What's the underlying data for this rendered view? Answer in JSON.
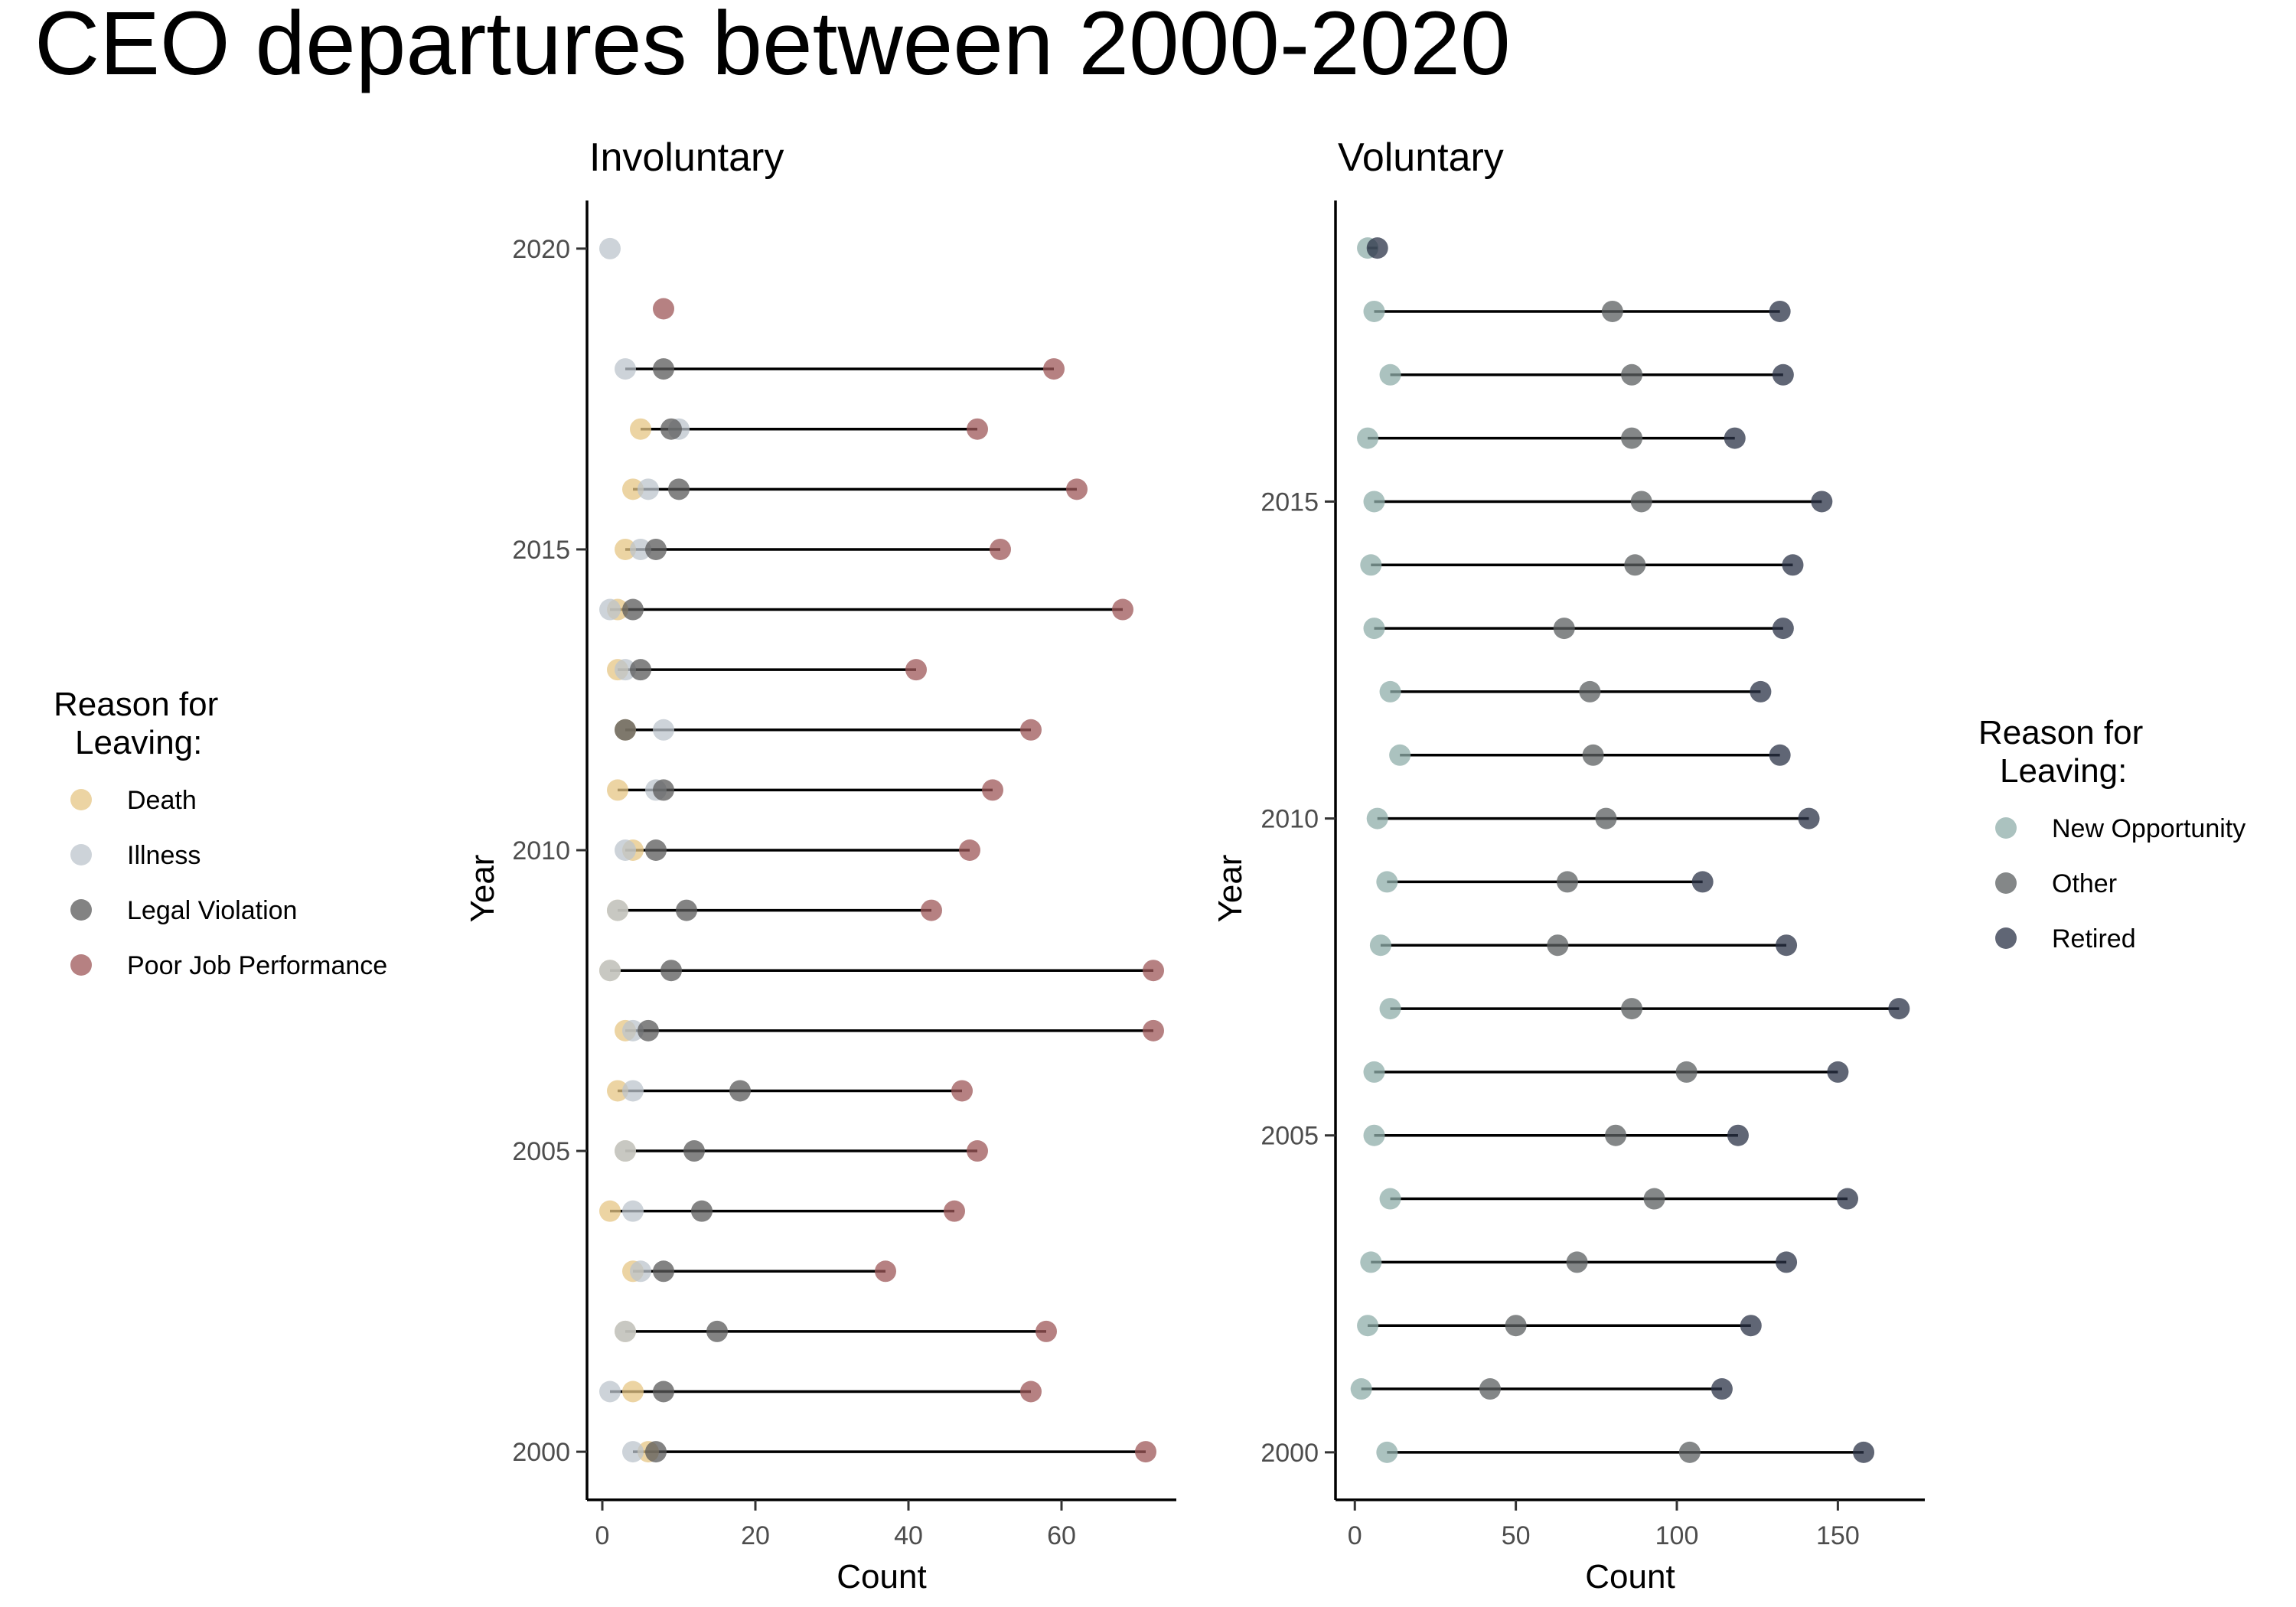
{
  "title": "CEO departures between 2000-2020",
  "colors": {
    "Death": "#E6C684",
    "Illness": "#BCC4CC",
    "Legal Violation": "#5A5A5A",
    "Poor Job Performance": "#9E5758",
    "New Opportunity": "#8FAEA9",
    "Other": "#5B5F60",
    "Retired": "#2B3347"
  },
  "legends": [
    {
      "title": "Reason for\nLeaving:",
      "items": [
        "Death",
        "Illness",
        "Legal Violation",
        "Poor Job Performance"
      ]
    },
    {
      "title": "Reason for\nLeaving:",
      "items": [
        "New Opportunity",
        "Other",
        "Retired"
      ]
    }
  ],
  "chart_data": [
    {
      "type": "dumbbell",
      "title": "Involuntary",
      "xlabel": "Count",
      "ylabel": "Year",
      "xlim": [
        -2,
        75
      ],
      "ylim": [
        1999.2,
        2020.8
      ],
      "xticks": [
        0,
        20,
        40,
        60
      ],
      "yticks": [
        2000,
        2005,
        2010,
        2015,
        2020
      ],
      "legend_position": "left",
      "grid": false,
      "series": [
        {
          "name": "Death",
          "points": [
            [
              2000,
              6
            ],
            [
              2001,
              4
            ],
            [
              2002,
              3
            ],
            [
              2003,
              4
            ],
            [
              2004,
              1
            ],
            [
              2005,
              3
            ],
            [
              2006,
              2
            ],
            [
              2007,
              3
            ],
            [
              2008,
              1
            ],
            [
              2009,
              2
            ],
            [
              2010,
              4
            ],
            [
              2011,
              2
            ],
            [
              2012,
              3
            ],
            [
              2013,
              2
            ],
            [
              2014,
              2
            ],
            [
              2015,
              3
            ],
            [
              2016,
              4
            ],
            [
              2017,
              5
            ]
          ]
        },
        {
          "name": "Illness",
          "points": [
            [
              2000,
              4
            ],
            [
              2001,
              1
            ],
            [
              2002,
              3
            ],
            [
              2003,
              5
            ],
            [
              2004,
              4
            ],
            [
              2005,
              3
            ],
            [
              2006,
              4
            ],
            [
              2007,
              4
            ],
            [
              2008,
              1
            ],
            [
              2009,
              2
            ],
            [
              2010,
              3
            ],
            [
              2011,
              7
            ],
            [
              2012,
              8
            ],
            [
              2013,
              3
            ],
            [
              2014,
              1
            ],
            [
              2015,
              5
            ],
            [
              2016,
              6
            ],
            [
              2017,
              10
            ],
            [
              2018,
              3
            ],
            [
              2020,
              1
            ]
          ]
        },
        {
          "name": "Legal Violation",
          "points": [
            [
              2000,
              7
            ],
            [
              2001,
              8
            ],
            [
              2002,
              15
            ],
            [
              2003,
              8
            ],
            [
              2004,
              13
            ],
            [
              2005,
              12
            ],
            [
              2006,
              18
            ],
            [
              2007,
              6
            ],
            [
              2008,
              9
            ],
            [
              2009,
              11
            ],
            [
              2010,
              7
            ],
            [
              2011,
              8
            ],
            [
              2012,
              3
            ],
            [
              2013,
              5
            ],
            [
              2014,
              4
            ],
            [
              2015,
              7
            ],
            [
              2016,
              10
            ],
            [
              2017,
              9
            ],
            [
              2018,
              8
            ]
          ]
        },
        {
          "name": "Poor Job Performance",
          "points": [
            [
              2000,
              71
            ],
            [
              2001,
              56
            ],
            [
              2002,
              58
            ],
            [
              2003,
              37
            ],
            [
              2004,
              46
            ],
            [
              2005,
              49
            ],
            [
              2006,
              47
            ],
            [
              2007,
              72
            ],
            [
              2008,
              72
            ],
            [
              2009,
              43
            ],
            [
              2010,
              48
            ],
            [
              2011,
              51
            ],
            [
              2012,
              56
            ],
            [
              2013,
              41
            ],
            [
              2014,
              68
            ],
            [
              2015,
              52
            ],
            [
              2016,
              62
            ],
            [
              2017,
              49
            ],
            [
              2018,
              59
            ],
            [
              2019,
              8
            ]
          ]
        }
      ]
    },
    {
      "type": "dumbbell",
      "title": "Voluntary",
      "xlabel": "Count",
      "ylabel": "Year",
      "xlim": [
        -6,
        177
      ],
      "ylim": [
        1999.25,
        2019.75
      ],
      "xticks": [
        0,
        50,
        100,
        150
      ],
      "yticks": [
        2000,
        2005,
        2010,
        2015
      ],
      "legend_position": "right",
      "grid": false,
      "series": [
        {
          "name": "New Opportunity",
          "points": [
            [
              2000,
              10
            ],
            [
              2001,
              2
            ],
            [
              2002,
              4
            ],
            [
              2003,
              5
            ],
            [
              2004,
              11
            ],
            [
              2005,
              6
            ],
            [
              2006,
              6
            ],
            [
              2007,
              11
            ],
            [
              2008,
              8
            ],
            [
              2009,
              10
            ],
            [
              2010,
              7
            ],
            [
              2011,
              14
            ],
            [
              2012,
              11
            ],
            [
              2013,
              6
            ],
            [
              2014,
              5
            ],
            [
              2015,
              6
            ],
            [
              2016,
              4
            ],
            [
              2017,
              11
            ],
            [
              2018,
              6
            ],
            [
              2019,
              4
            ]
          ]
        },
        {
          "name": "Other",
          "points": [
            [
              2000,
              104
            ],
            [
              2001,
              42
            ],
            [
              2002,
              50
            ],
            [
              2003,
              69
            ],
            [
              2004,
              93
            ],
            [
              2005,
              81
            ],
            [
              2006,
              103
            ],
            [
              2007,
              86
            ],
            [
              2008,
              63
            ],
            [
              2009,
              66
            ],
            [
              2010,
              78
            ],
            [
              2011,
              74
            ],
            [
              2012,
              73
            ],
            [
              2013,
              65
            ],
            [
              2014,
              87
            ],
            [
              2015,
              89
            ],
            [
              2016,
              86
            ],
            [
              2017,
              86
            ],
            [
              2018,
              80
            ]
          ]
        },
        {
          "name": "Retired",
          "points": [
            [
              2000,
              158
            ],
            [
              2001,
              114
            ],
            [
              2002,
              123
            ],
            [
              2003,
              134
            ],
            [
              2004,
              153
            ],
            [
              2005,
              119
            ],
            [
              2006,
              150
            ],
            [
              2007,
              169
            ],
            [
              2008,
              134
            ],
            [
              2009,
              108
            ],
            [
              2010,
              141
            ],
            [
              2011,
              132
            ],
            [
              2012,
              126
            ],
            [
              2013,
              133
            ],
            [
              2014,
              136
            ],
            [
              2015,
              145
            ],
            [
              2016,
              118
            ],
            [
              2017,
              133
            ],
            [
              2018,
              132
            ],
            [
              2019,
              7
            ]
          ]
        }
      ]
    }
  ]
}
